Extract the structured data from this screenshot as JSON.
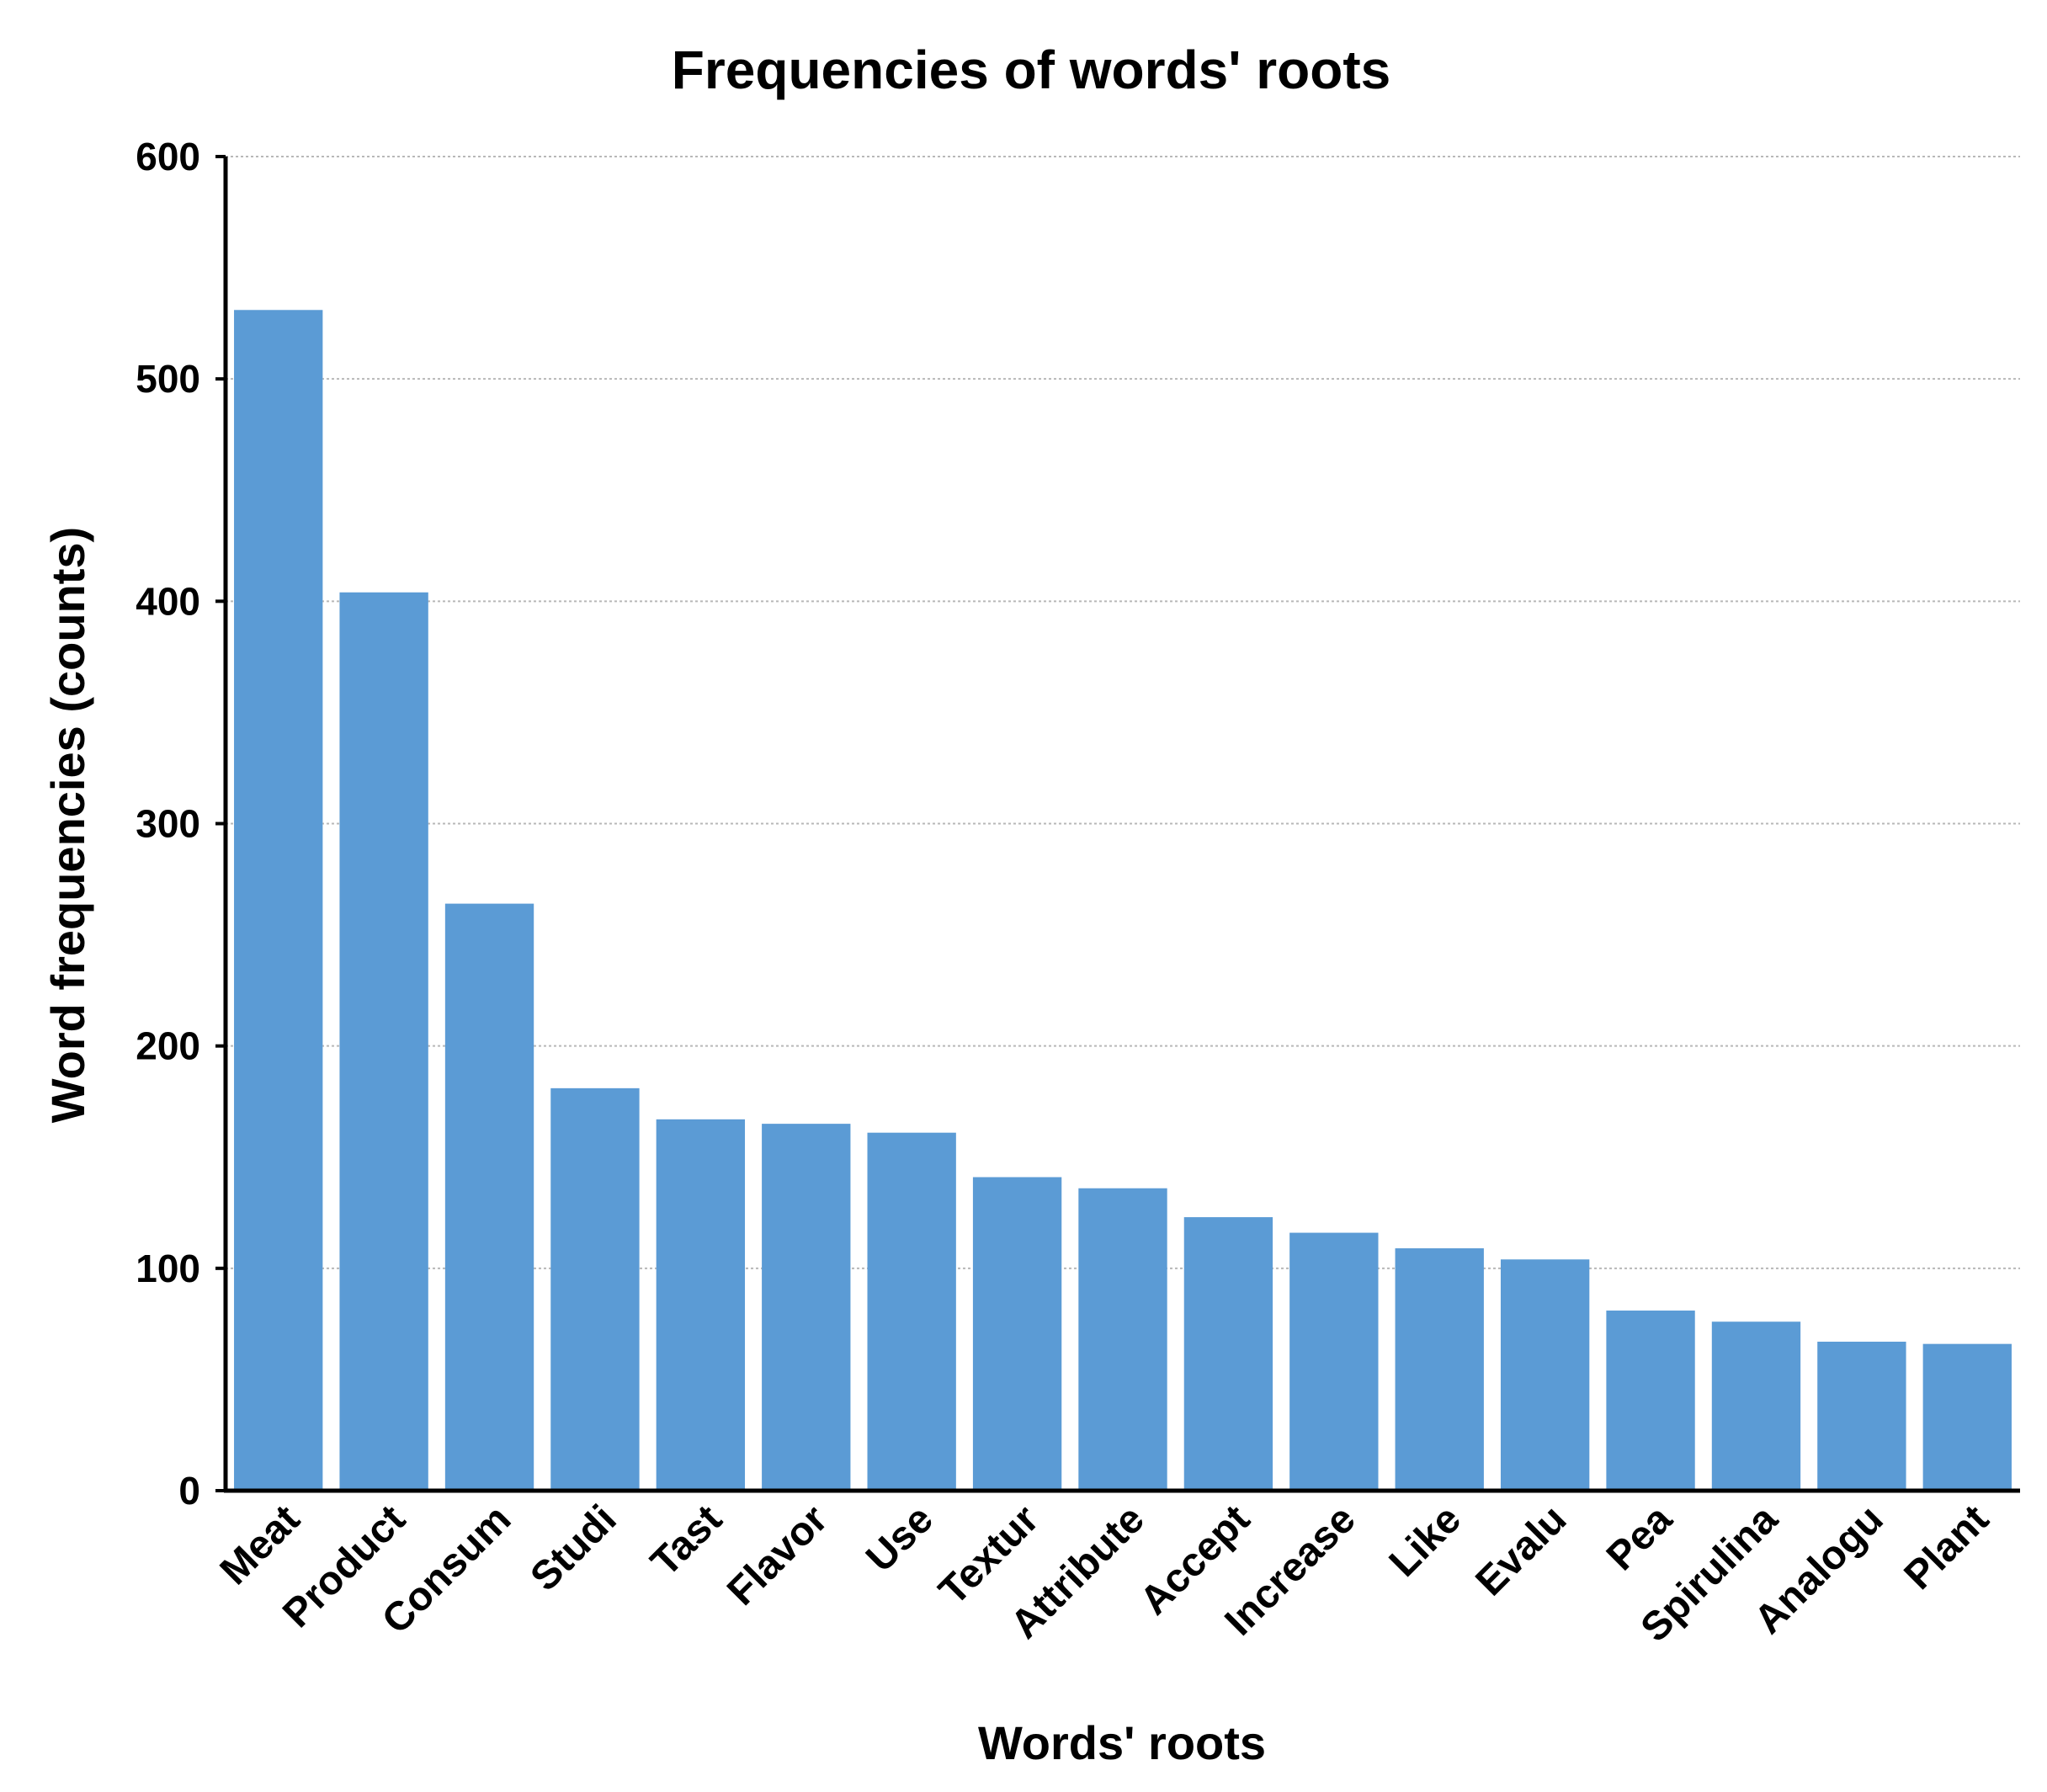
{
  "chart_data": {
    "type": "bar",
    "title": "Frequencies of words' roots",
    "xlabel": "Words' roots",
    "ylabel": "Word frequencies (counts)",
    "ylim": [
      0,
      600
    ],
    "yticks": [
      0,
      100,
      200,
      300,
      400,
      500,
      600
    ],
    "grid": true,
    "bar_color": "#5b9bd5",
    "categories": [
      "Meat",
      "Product",
      "Consum",
      "Studi",
      "Tast",
      "Flavor",
      "Use",
      "Textur",
      "Attribute",
      "Accept",
      "Increase",
      "Like",
      "Evalu",
      "Pea",
      "Spirulina",
      "Analogu",
      "Plant"
    ],
    "values": [
      531,
      404,
      264,
      181,
      167,
      165,
      161,
      141,
      136,
      123,
      116,
      109,
      104,
      81,
      76,
      67,
      66
    ]
  }
}
